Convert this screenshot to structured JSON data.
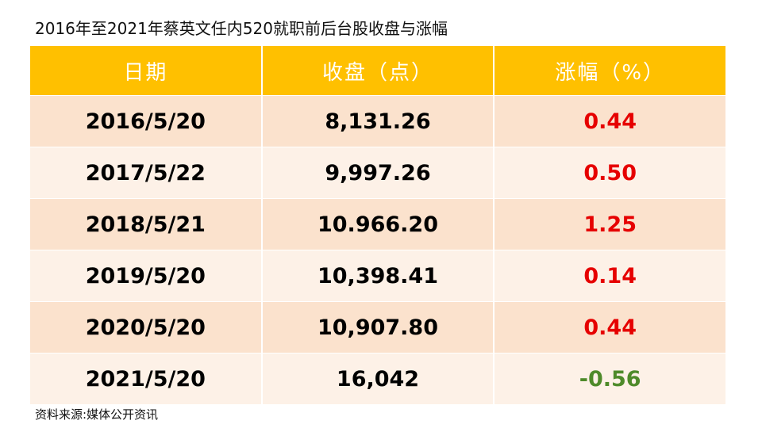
{
  "header": {
    "title": "2016年至2021年蔡英文任内520就职前后台股收盘与涨幅"
  },
  "table": {
    "columns": [
      "日期",
      "收盘（点）",
      "涨幅（%）"
    ],
    "rows": [
      [
        "2016/5/20",
        "8,131.26",
        "0.44"
      ],
      [
        "2017/5/22",
        "9,997.26",
        "0.50"
      ],
      [
        "2018/5/21",
        "10.966.20",
        "1.25"
      ],
      [
        "2019/5/20",
        "10,398.41",
        "0.14"
      ],
      [
        "2020/5/20",
        "10,907.80",
        "0.44"
      ],
      [
        "2021/5/20",
        "16,042",
        "-0.56"
      ]
    ],
    "colors": {
      "header": "#ffc000",
      "row_a": "#fbe2cd",
      "row_b": "#fdf1e7",
      "up": "#e60000",
      "down": "#4e8a2a"
    }
  },
  "footer": {
    "source": "资料来源:媒体公开资讯"
  }
}
